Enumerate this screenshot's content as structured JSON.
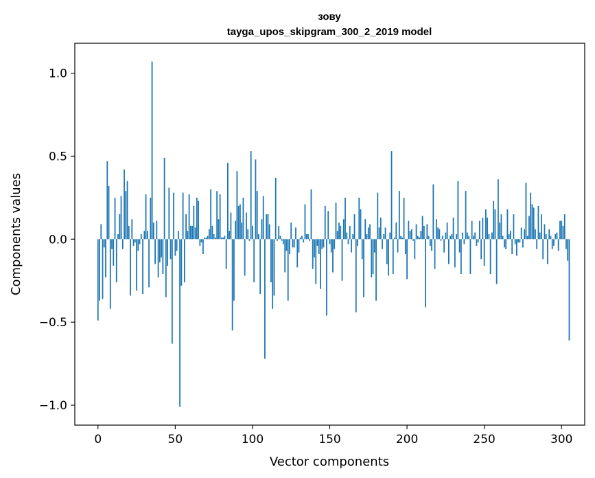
{
  "chart_data": {
    "type": "bar",
    "title": "зову",
    "subtitle": "tayga_upos_skipgram_300_2_2019 model",
    "xlabel": "Vector components",
    "ylabel": "Components values",
    "xlim": [
      -15,
      315
    ],
    "ylim": [
      -1.12,
      1.18
    ],
    "x_ticks": [
      0,
      50,
      100,
      150,
      200,
      250,
      300
    ],
    "y_ticks": [
      -1.0,
      -0.5,
      0.0,
      0.5,
      1.0
    ],
    "x_tick_labels": [
      "0",
      "50",
      "100",
      "150",
      "200",
      "250",
      "300"
    ],
    "y_tick_labels": [
      "−1.0",
      "−0.5",
      "0.0",
      "0.5",
      "1.0"
    ],
    "bar_color": "#1f77b4",
    "grid": false,
    "values": [
      -0.49,
      -0.37,
      0.09,
      -0.36,
      -0.05,
      -0.23,
      0.47,
      0.32,
      -0.42,
      -0.06,
      -0.16,
      0.25,
      -0.26,
      0.03,
      0.15,
      0.26,
      -0.06,
      0.42,
      0.29,
      0.35,
      0.08,
      -0.34,
      0.12,
      -0.04,
      -0.02,
      -0.31,
      -0.07,
      -0.03,
      0.03,
      -0.33,
      0.05,
      0.27,
      0.05,
      -0.29,
      0.25,
      1.07,
      0.1,
      -0.15,
      0.11,
      -0.23,
      -0.14,
      -0.11,
      -0.21,
      0.49,
      -0.35,
      -0.16,
      0.31,
      -0.12,
      -0.63,
      0.28,
      -0.1,
      -0.07,
      0.05,
      -1.01,
      -0.28,
      0.28,
      -0.26,
      0.15,
      0.05,
      0.27,
      0.08,
      0.08,
      0.2,
      0.07,
      0.25,
      0.23,
      -0.04,
      -0.02,
      -0.09,
      0.01,
      0.01,
      0.02,
      0.06,
      0.3,
      0.08,
      0.03,
      0.01,
      0.29,
      0.12,
      0.27,
      0.01,
      0.01,
      0.02,
      -0.18,
      0.46,
      0.05,
      0.16,
      -0.55,
      -0.37,
      0.11,
      0.41,
      0.2,
      0.21,
      0.1,
      0.25,
      -0.22,
      0.16,
      0.06,
      -0.01,
      0.53,
      0.08,
      -0.26,
      0.48,
      0.29,
      0.03,
      -0.33,
      0.12,
      0.26,
      -0.72,
      0.15,
      0.15,
      0.09,
      -0.26,
      -0.42,
      -0.34,
      0.37,
      -0.01,
      0.08,
      0.02,
      -0.01,
      -0.03,
      -0.2,
      -0.07,
      -0.37,
      -0.09,
      0.1,
      -0.05,
      -0.05,
      0.07,
      -0.17,
      -0.08,
      0.01,
      0.02,
      -0.02,
      0.21,
      0.03,
      0.03,
      -0.01,
      0.3,
      -0.18,
      -0.11,
      -0.27,
      -0.04,
      -0.09,
      -0.3,
      -0.06,
      -0.05,
      0.2,
      -0.46,
      0.17,
      -0.03,
      -0.08,
      -0.2,
      -0.06,
      0.22,
      0.05,
      0.1,
      0.08,
      -0.25,
      0.12,
      0.25,
      0.04,
      -0.03,
      0.08,
      -0.08,
      0.03,
      0.15,
      -0.44,
      -0.04,
      0.25,
      0.18,
      -0.12,
      -0.35,
      0.12,
      0.03,
      0.07,
      0.09,
      -0.23,
      -0.21,
      -0.08,
      -0.37,
      0.28,
      0.07,
      0.13,
      -0.06,
      0.03,
      0.07,
      -0.15,
      -0.22,
      0.04,
      0.53,
      -0.21,
      0.01,
      0.1,
      -0.08,
      0.29,
      0.02,
      0.01,
      0.25,
      -0.09,
      -0.24,
      0.11,
      0.05,
      0.06,
      -0.01,
      -0.12,
      0.09,
      0.02,
      0.01,
      0.05,
      0.14,
      0.08,
      -0.41,
      0.09,
      0.02,
      -0.04,
      -0.07,
      0.33,
      -0.18,
      0.12,
      0.07,
      0.06,
      -0.01,
      0.02,
      -0.08,
      0.04,
      0.1,
      -0.15,
      0.02,
      0.03,
      0.13,
      -0.17,
      0.03,
      0.35,
      -0.08,
      -0.21,
      0.04,
      -0.03,
      0.29,
      0.04,
      0.02,
      -0.21,
      0.11,
      0.02,
      0.04,
      -0.04,
      -0.02,
      0.11,
      -0.12,
      0.13,
      -0.16,
      0.18,
      0.13,
      0.03,
      -0.21,
      0.04,
      0.23,
      0.18,
      -0.27,
      0.36,
      0.1,
      0.15,
      0.02,
      -0.05,
      -0.06,
      0.18,
      0.03,
      0.05,
      -0.09,
      0.15,
      -0.03,
      -0.1,
      -0.02,
      -0.02,
      0.07,
      -0.05,
      0.06,
      0.34,
      0.02,
      0.14,
      0.28,
      0.21,
      0.19,
      0.06,
      -0.06,
      0.2,
      0.04,
      0.15,
      -0.12,
      0.09,
      0.03,
      -0.15,
      0.06,
      0.02,
      -0.06,
      -0.04,
      0.03,
      0.04,
      -0.07,
      0.11,
      0.11,
      0.08,
      0.15,
      -0.06,
      -0.13,
      -0.61
    ]
  }
}
